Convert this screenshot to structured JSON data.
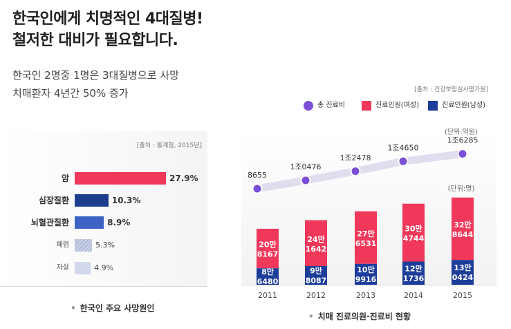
{
  "headline": {
    "line1": "한국인에게 치명적인 4대질병!",
    "line2": "철저한 대비가 필요합니다."
  },
  "subhead": {
    "line1": "한국인 2명중 1명은 3대질병으로 사망",
    "line2": "치매환자 4년간 50% 증가"
  },
  "chart_data": [
    {
      "type": "bar",
      "orientation": "horizontal",
      "title": "한국인 주요 사망원인",
      "source": "[출처 : 통계청, 2015년]",
      "categories": [
        "암",
        "심장질환",
        "뇌혈관질환",
        "폐렴",
        "자살"
      ],
      "values": [
        27.9,
        10.3,
        8.9,
        5.3,
        4.9
      ],
      "value_labels": [
        "27.9%",
        "10.3%",
        "8.9%",
        "5.3%",
        "4.9%"
      ],
      "colors": [
        "#f0385a",
        "#1d3d8f",
        "#3d63c4",
        "#b1bbd9",
        "#d3d9ec"
      ],
      "grid": false
    },
    {
      "type": "bar",
      "stacked": true,
      "title": "치매 진료의원·진료비 현황",
      "source": "[출처 : 건강보험심사평가원]",
      "categories": [
        "2011",
        "2012",
        "2013",
        "2014",
        "2015"
      ],
      "series": [
        {
          "name": "진료인원(남성)",
          "color": "#1d3d9a",
          "values": [
            86480,
            98087,
            109916,
            121736,
            130424
          ],
          "labels": [
            [
              "8만",
              "6480"
            ],
            [
              "9만",
              "8087"
            ],
            [
              "10만",
              "9916"
            ],
            [
              "12만",
              "1736"
            ],
            [
              "13만",
              "0424"
            ]
          ]
        },
        {
          "name": "진료인원(여성)",
          "color": "#f0385a",
          "values": [
            208167,
            241642,
            276531,
            304744,
            328644
          ],
          "labels": [
            [
              "20만",
              "8167"
            ],
            [
              "24만",
              "1642"
            ],
            [
              "27만",
              "6531"
            ],
            [
              "30만",
              "4744"
            ],
            [
              "32만",
              "8644"
            ]
          ]
        }
      ],
      "line_series": {
        "name": "총 진료비",
        "color": "#7a4fd6",
        "values": [
          8655,
          10476,
          12478,
          14650,
          16285
        ],
        "labels": [
          "8655",
          "1조0476",
          "1조2478",
          "1조4650",
          "1조6285"
        ]
      },
      "unit_line": "(단위:억원)",
      "unit_bar": "(단위:명)",
      "grid": false
    }
  ]
}
